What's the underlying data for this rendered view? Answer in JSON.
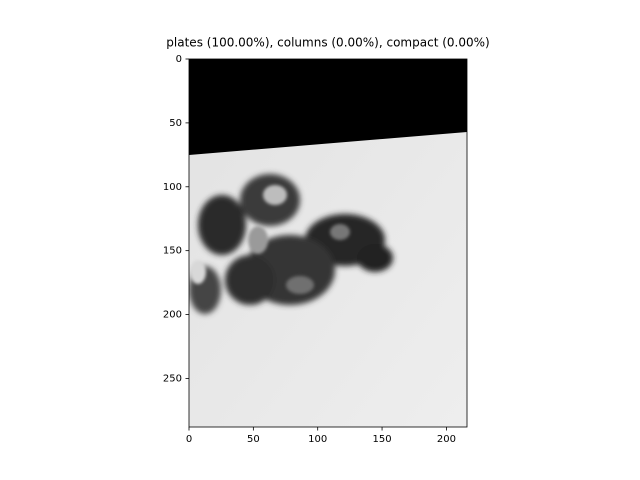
{
  "chart_data": {
    "type": "image",
    "title": "plates (100.00%), columns (0.00%), compact (0.00%)",
    "xlim": [
      0,
      216
    ],
    "xticks": [
      0,
      50,
      100,
      150,
      200
    ],
    "ylim": [
      288,
      0
    ],
    "yticks": [
      0,
      50,
      100,
      150,
      200,
      250
    ]
  }
}
